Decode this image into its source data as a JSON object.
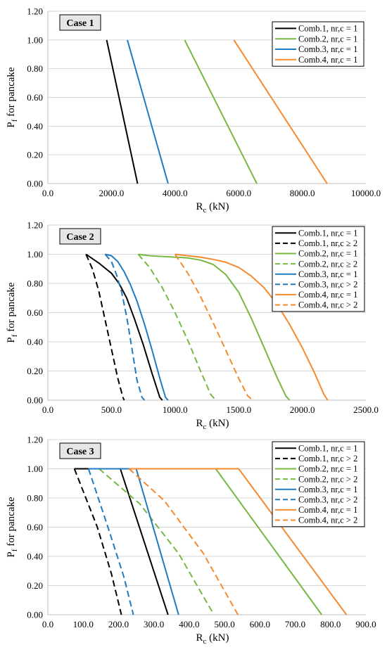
{
  "colors": {
    "comb1": "#000000",
    "comb2": "#77b843",
    "comb3": "#1f7bc1",
    "comb4": "#f58a2e",
    "grid": "#d6d6d6",
    "label_box": "#e6e6e6"
  },
  "chart_data": [
    {
      "type": "line",
      "case_label": "Case 1",
      "ylabel_main": "P",
      "ylabel_sub": "f",
      "ylabel_rest": " for pancake",
      "xlabel_main": "R",
      "xlabel_sub": "c",
      "xlabel_rest": " (kN)",
      "xlim": [
        0,
        10000
      ],
      "ylim": [
        0,
        1.2
      ],
      "x_ticks": [
        0,
        2000,
        4000,
        6000,
        8000,
        10000
      ],
      "x_tick_labels": [
        "0.0",
        "2000.0",
        "4000.0",
        "6000.0",
        "8000.0",
        "10000.0"
      ],
      "y_ticks": [
        0,
        0.2,
        0.4,
        0.6,
        0.8,
        1.0,
        1.2
      ],
      "y_tick_labels": [
        "0.00",
        "0.20",
        "0.40",
        "0.60",
        "0.80",
        "1.00",
        "1.20"
      ],
      "grid": "horizontal",
      "legend_position": "top-right",
      "series": [
        {
          "name": "Comb.1, nr,c = 1",
          "color_key": "comb1",
          "dashed": false,
          "x": [
            1850,
            2820
          ],
          "y": [
            1.0,
            0.0
          ]
        },
        {
          "name": "Comb.2, nr,c = 1",
          "color_key": "comb2",
          "dashed": false,
          "x": [
            4300,
            6570
          ],
          "y": [
            1.0,
            0.0
          ]
        },
        {
          "name": "Comb.3, nr,c = 1",
          "color_key": "comb3",
          "dashed": false,
          "x": [
            2500,
            3780
          ],
          "y": [
            1.0,
            0.0
          ]
        },
        {
          "name": "Comb.4, nr,c = 1",
          "color_key": "comb4",
          "dashed": false,
          "x": [
            5850,
            8780
          ],
          "y": [
            1.0,
            0.0
          ]
        }
      ]
    },
    {
      "type": "line",
      "case_label": "Case 2",
      "ylabel_main": "P",
      "ylabel_sub": "f",
      "ylabel_rest": " for pancake",
      "xlabel_main": "R",
      "xlabel_sub": "c",
      "xlabel_rest": " (kN)",
      "xlim": [
        0,
        2500
      ],
      "ylim": [
        0,
        1.2
      ],
      "x_ticks": [
        0,
        500,
        1000,
        1500,
        2000,
        2500
      ],
      "x_tick_labels": [
        "0.0",
        "500.0",
        "1000.0",
        "1500.0",
        "2000.0",
        "2500.0"
      ],
      "y_ticks": [
        0,
        0.2,
        0.4,
        0.6,
        0.8,
        1.0,
        1.2
      ],
      "y_tick_labels": [
        "0.00",
        "0.20",
        "0.40",
        "0.60",
        "0.80",
        "1.00",
        "1.20"
      ],
      "grid": "horizontal",
      "legend_position": "top-right",
      "series": [
        {
          "name": "Comb.1, nr,c = 1",
          "color_key": "comb1",
          "dashed": false,
          "x": [
            300,
            400,
            500,
            560,
            620,
            680,
            750,
            820,
            880,
            900
          ],
          "y": [
            1.0,
            0.94,
            0.87,
            0.8,
            0.7,
            0.56,
            0.38,
            0.18,
            0.02,
            0.0
          ]
        },
        {
          "name": "Comb.1, nr,c ≥ 2",
          "color_key": "comb1",
          "dashed": true,
          "x": [
            300,
            350,
            400,
            450,
            500,
            550,
            590,
            600
          ],
          "y": [
            1.0,
            0.9,
            0.75,
            0.55,
            0.35,
            0.15,
            0.02,
            0.0
          ]
        },
        {
          "name": "Comb.2, nr,c = 1",
          "color_key": "comb2",
          "dashed": false,
          "x": [
            710,
            800,
            900,
            1000,
            1100,
            1200,
            1300,
            1400,
            1500,
            1600,
            1700,
            1800,
            1870,
            1900
          ],
          "y": [
            1.0,
            0.99,
            0.985,
            0.98,
            0.975,
            0.96,
            0.93,
            0.86,
            0.74,
            0.56,
            0.36,
            0.16,
            0.03,
            0.0
          ]
        },
        {
          "name": "Comb.2, nr,c ≥ 2",
          "color_key": "comb2",
          "dashed": true,
          "x": [
            710,
            800,
            900,
            1000,
            1100,
            1200,
            1280,
            1320
          ],
          "y": [
            1.0,
            0.91,
            0.77,
            0.6,
            0.41,
            0.2,
            0.04,
            0.0
          ]
        },
        {
          "name": "Comb.3, nr,c = 1",
          "color_key": "comb3",
          "dashed": false,
          "x": [
            450,
            500,
            550,
            600,
            650,
            700,
            760,
            820,
            880,
            925,
            945
          ],
          "y": [
            1.0,
            0.99,
            0.95,
            0.88,
            0.79,
            0.68,
            0.52,
            0.34,
            0.15,
            0.02,
            0.0
          ]
        },
        {
          "name": "Comb.3, nr,c > 2",
          "color_key": "comb3",
          "dashed": true,
          "x": [
            450,
            500,
            540,
            580,
            620,
            660,
            700,
            740,
            760
          ],
          "y": [
            1.0,
            0.95,
            0.86,
            0.74,
            0.57,
            0.36,
            0.14,
            0.02,
            0.0
          ]
        },
        {
          "name": "Comb.4, nr,c = 1",
          "color_key": "comb4",
          "dashed": false,
          "x": [
            1000,
            1100,
            1200,
            1300,
            1400,
            1500,
            1600,
            1700,
            1800,
            1900,
            2000,
            2100,
            2170,
            2200
          ],
          "y": [
            1.0,
            0.99,
            0.98,
            0.965,
            0.945,
            0.91,
            0.85,
            0.77,
            0.66,
            0.52,
            0.36,
            0.18,
            0.04,
            0.0
          ]
        },
        {
          "name": "Comb.4, nr,c > 2",
          "color_key": "comb4",
          "dashed": true,
          "x": [
            1000,
            1100,
            1200,
            1300,
            1400,
            1500,
            1570,
            1610
          ],
          "y": [
            1.0,
            0.87,
            0.71,
            0.53,
            0.34,
            0.15,
            0.03,
            0.0
          ]
        }
      ]
    },
    {
      "type": "line",
      "case_label": "Case 3",
      "ylabel_main": "P",
      "ylabel_sub": "f",
      "ylabel_rest": " for pancake",
      "xlabel_main": "R",
      "xlabel_sub": "c",
      "xlabel_rest": " (kN)",
      "xlim": [
        0,
        900
      ],
      "ylim": [
        0,
        1.2
      ],
      "x_ticks": [
        0,
        100,
        200,
        300,
        400,
        500,
        600,
        700,
        800,
        900
      ],
      "x_tick_labels": [
        "0.0",
        "100.0",
        "200.0",
        "300.0",
        "400.0",
        "500.0",
        "600.0",
        "700.0",
        "800.0",
        "900.0"
      ],
      "y_ticks": [
        0,
        0.2,
        0.4,
        0.6,
        0.8,
        1.0,
        1.2
      ],
      "y_tick_labels": [
        "0.00",
        "0.20",
        "0.40",
        "0.60",
        "0.80",
        "1.00",
        "1.20"
      ],
      "grid": "horizontal",
      "legend_position": "top-right",
      "series": [
        {
          "name": "Comb.1, nr,c = 1",
          "color_key": "comb1",
          "dashed": false,
          "x": [
            75,
            205,
            340
          ],
          "y": [
            1.0,
            1.0,
            0.0
          ]
        },
        {
          "name": "Comb.1, nr,c > 2",
          "color_key": "comb1",
          "dashed": true,
          "x": [
            75,
            140,
            180,
            208
          ],
          "y": [
            1.0,
            0.6,
            0.28,
            0.0
          ]
        },
        {
          "name": "Comb.2, nr,c = 1",
          "color_key": "comb2",
          "dashed": false,
          "x": [
            145,
            475,
            775
          ],
          "y": [
            1.0,
            1.0,
            0.0
          ]
        },
        {
          "name": "Comb.2, nr,c > 2",
          "color_key": "comb2",
          "dashed": true,
          "x": [
            145,
            260,
            370,
            470
          ],
          "y": [
            1.0,
            0.76,
            0.42,
            0.0
          ]
        },
        {
          "name": "Comb.3, nr,c = 1",
          "color_key": "comb3",
          "dashed": false,
          "x": [
            115,
            250,
            370
          ],
          "y": [
            1.0,
            1.0,
            0.0
          ]
        },
        {
          "name": "Comb.3, nr,c > 2",
          "color_key": "comb3",
          "dashed": true,
          "x": [
            115,
            170,
            215,
            242
          ],
          "y": [
            1.0,
            0.6,
            0.26,
            0.0
          ]
        },
        {
          "name": "Comb.4, nr,c = 1",
          "color_key": "comb4",
          "dashed": false,
          "x": [
            230,
            540,
            845
          ],
          "y": [
            1.0,
            1.0,
            0.0
          ]
        },
        {
          "name": "Comb.4, nr,c > 2",
          "color_key": "comb4",
          "dashed": true,
          "x": [
            230,
            330,
            440,
            538
          ],
          "y": [
            1.0,
            0.78,
            0.42,
            0.0
          ]
        }
      ]
    }
  ]
}
